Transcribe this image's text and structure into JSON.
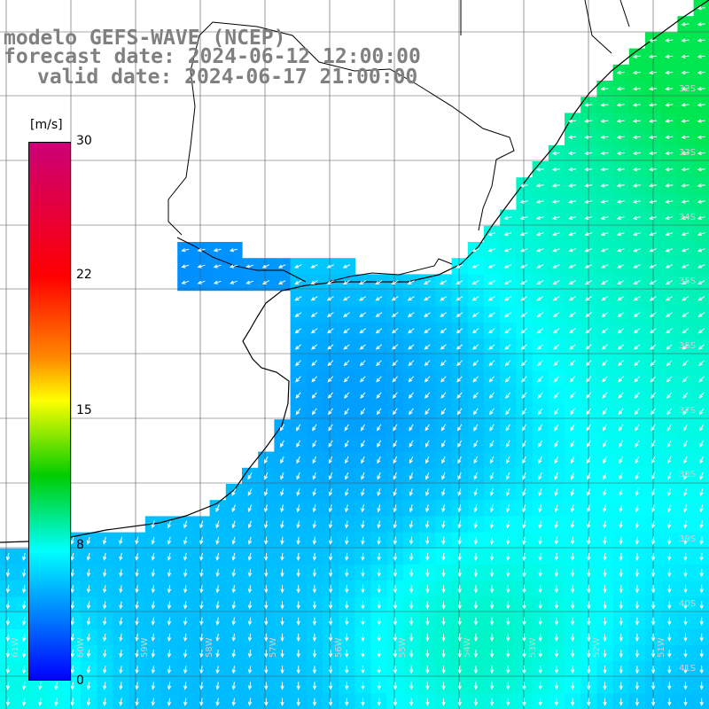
{
  "title": {
    "model": "modelo GEFS-WAVE (NCEP)",
    "forecast": "forecast date: 2024-06-12 12:00:00",
    "valid": "valid date: 2024-06-17 21:00:00"
  },
  "colorbar": {
    "unit": "[m/s]",
    "ticks": [
      {
        "label": "30",
        "value": 30
      },
      {
        "label": "22",
        "value": 22
      },
      {
        "label": "15",
        "value": 15
      },
      {
        "label": "8",
        "value": 8
      },
      {
        "label": "0",
        "value": 0
      }
    ],
    "colors": [
      "#0000ff",
      "#0080ff",
      "#00ffff",
      "#00cc00",
      "#ffff00",
      "#ff8800",
      "#ff0000",
      "#cc0077"
    ]
  },
  "axes": {
    "lon_labels": [
      "61W",
      "60W",
      "59W",
      "58W",
      "57W",
      "56W",
      "55W",
      "54W",
      "53W",
      "52W",
      "51W"
    ],
    "lat_labels": [
      "32S",
      "33S",
      "34S",
      "35S",
      "36S",
      "37S",
      "38S",
      "39S",
      "40S",
      "41S"
    ]
  },
  "field": {
    "variable": "wind speed and direction",
    "dominant_flow": "onshore from the east turning southward offshore",
    "range_ms": [
      3,
      11
    ]
  }
}
